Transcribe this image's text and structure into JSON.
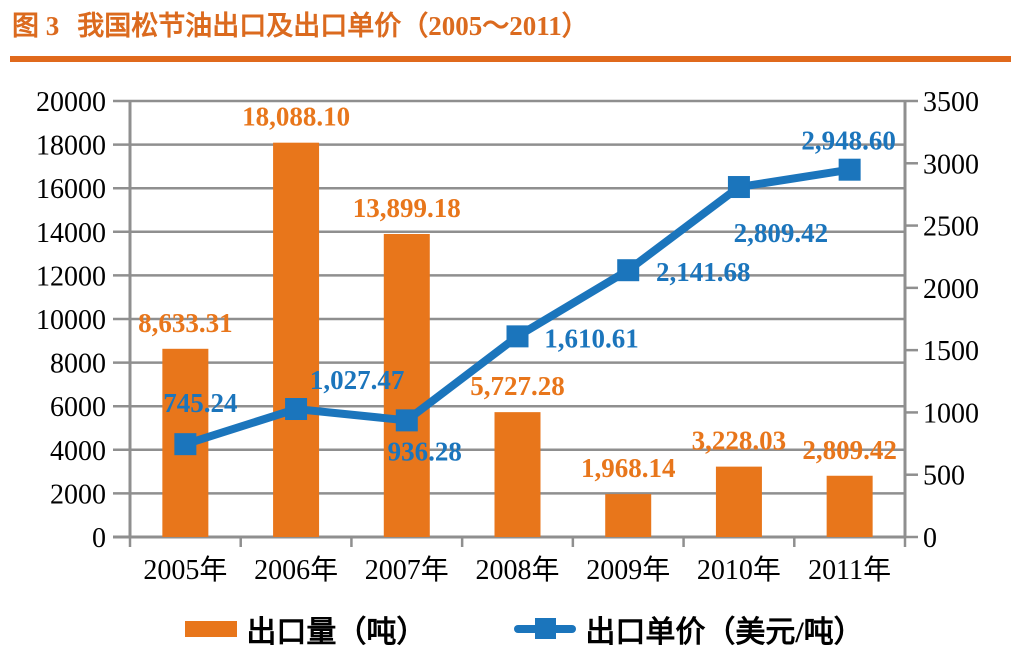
{
  "figure": {
    "label": "图 3",
    "title": "我国松节油出口及出口单价（2005～2011）"
  },
  "colors": {
    "title_orange": "#DB6A1E",
    "rule_orange": "#E0691C",
    "bar_orange": "#E8761B",
    "line_blue": "#1B75BC",
    "grid_gray": "#8F8F8F",
    "axis_text_black": "#000000"
  },
  "chart_data": {
    "type": "combo bar+line, dual axis",
    "categories": [
      "2005年",
      "2006年",
      "2007年",
      "2008年",
      "2009年",
      "2010年",
      "2011年"
    ],
    "series": [
      {
        "name": "出口量（吨）",
        "type": "bar",
        "axis": "left",
        "color": "#E8761B",
        "values": [
          8633.31,
          18088.1,
          13899.18,
          5727.28,
          1968.14,
          3228.03,
          2809.42
        ],
        "labels": [
          "8,633.31",
          "18,088.10",
          "13,899.18",
          "5,727.28",
          "1,968.14",
          "3,228.03",
          "2,809.42"
        ]
      },
      {
        "name": "出口单价（美元/吨）",
        "type": "line",
        "axis": "right",
        "color": "#1B75BC",
        "marker": "square",
        "values": [
          745.24,
          1027.47,
          936.28,
          1610.61,
          2141.68,
          2809.42,
          2948.6
        ],
        "labels": [
          "745.24",
          "1,027.47",
          "936.28",
          "1,610.61",
          "2,141.68",
          "2,809.42",
          "2,948.60"
        ],
        "label_offsets": [
          [
            15,
            -41
          ],
          [
            61,
            -29
          ],
          [
            18,
            31
          ],
          [
            74,
            2
          ],
          [
            75,
            2
          ],
          [
            42,
            46
          ],
          [
            -1,
            -29
          ]
        ]
      }
    ],
    "left_axis": {
      "min": 0,
      "max": 20000,
      "step": 2000,
      "tick_labels": [
        "0",
        "2000",
        "4000",
        "6000",
        "8000",
        "10000",
        "12000",
        "14000",
        "16000",
        "18000",
        "20000"
      ]
    },
    "right_axis": {
      "min": 0,
      "max": 3500,
      "step": 500,
      "tick_labels": [
        "0",
        "500",
        "1000",
        "1500",
        "2000",
        "2500",
        "3000",
        "3500"
      ]
    },
    "grid": true,
    "legend_position": "bottom"
  }
}
